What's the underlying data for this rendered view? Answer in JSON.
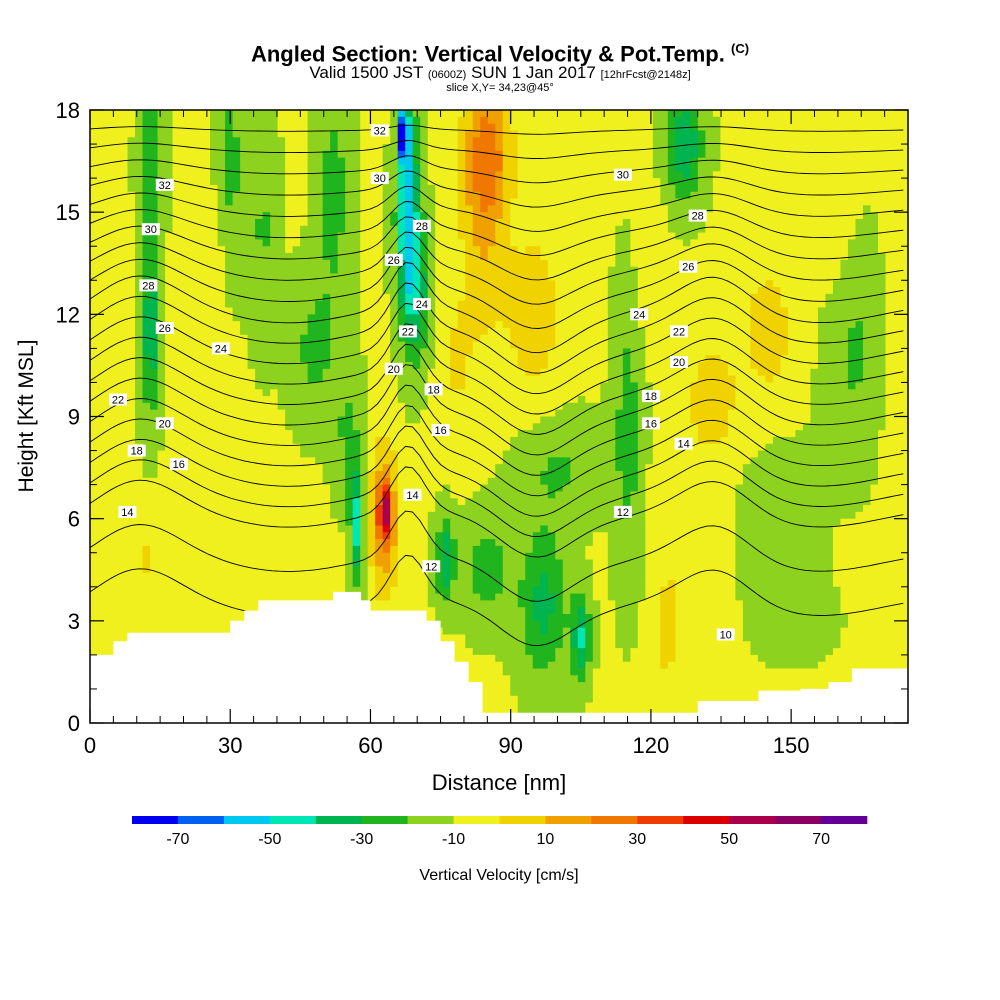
{
  "title": {
    "main": "Angled Section: Vertical Velocity & Pot.Temp.",
    "main_unit": "(C)",
    "valid_prefix": "Valid 1500 JST",
    "valid_utc": "(0600Z)",
    "valid_date": "SUN 1 Jan 2017",
    "forecast": "[12hrFcst@2148z]",
    "slice": "slice X,Y= 34,23@45°"
  },
  "chart_data": {
    "type": "heatmap",
    "xlabel": "Distance [nm]",
    "ylabel": "Height [Kft MSL]",
    "xlim": [
      0,
      175
    ],
    "ylim": [
      0,
      18
    ],
    "xticks": [
      0,
      30,
      60,
      90,
      120,
      150
    ],
    "yticks": [
      0,
      3,
      6,
      9,
      12,
      15,
      18
    ],
    "colorbar": {
      "label": "Vertical Velocity [cm/s]",
      "tick_labels": [
        "-70",
        "-50",
        "-30",
        "-10",
        "10",
        "30",
        "50",
        "70"
      ],
      "bounds": [
        -80,
        -70,
        -60,
        -50,
        -40,
        -30,
        -20,
        -10,
        0,
        10,
        20,
        30,
        40,
        50,
        60,
        70,
        80
      ],
      "colors": [
        "#0000f0",
        "#0060f0",
        "#00c8f0",
        "#00e6b4",
        "#00b450",
        "#20b41e",
        "#8cd21e",
        "#f0f01e",
        "#f0d200",
        "#f0a000",
        "#f07800",
        "#f03c00",
        "#dc0000",
        "#aa004c",
        "#8c0064",
        "#640096"
      ]
    },
    "terrain": [
      [
        0,
        2.0
      ],
      [
        5,
        2.0
      ],
      [
        5,
        2.4
      ],
      [
        8,
        2.4
      ],
      [
        8,
        2.65
      ],
      [
        30,
        2.65
      ],
      [
        30,
        3.0
      ],
      [
        33,
        3.0
      ],
      [
        33,
        3.3
      ],
      [
        36,
        3.3
      ],
      [
        36,
        3.6
      ],
      [
        52,
        3.6
      ],
      [
        52,
        3.85
      ],
      [
        58,
        3.85
      ],
      [
        58,
        3.6
      ],
      [
        60,
        3.6
      ],
      [
        60,
        3.3
      ],
      [
        72,
        3.3
      ],
      [
        72,
        3.0
      ],
      [
        75,
        3.0
      ],
      [
        75,
        2.4
      ],
      [
        78,
        2.4
      ],
      [
        78,
        1.8
      ],
      [
        81,
        1.8
      ],
      [
        81,
        1.2
      ],
      [
        84,
        1.2
      ],
      [
        84,
        0.3
      ],
      [
        130,
        0.3
      ],
      [
        130,
        0.65
      ],
      [
        143,
        0.65
      ],
      [
        143,
        0.95
      ],
      [
        152,
        0.95
      ],
      [
        152,
        1.0
      ],
      [
        158,
        1.0
      ],
      [
        158,
        1.2
      ],
      [
        163,
        1.2
      ],
      [
        163,
        1.6
      ],
      [
        175,
        1.6
      ]
    ],
    "pot_temp_contour_labels": [
      {
        "value": "32",
        "x": 16,
        "y": 15.8
      },
      {
        "value": "30",
        "x": 13,
        "y": 14.5
      },
      {
        "value": "28",
        "x": 12.5,
        "y": 12.85
      },
      {
        "value": "26",
        "x": 16,
        "y": 11.6
      },
      {
        "value": "24",
        "x": 28,
        "y": 11.0
      },
      {
        "value": "22",
        "x": 6,
        "y": 9.5
      },
      {
        "value": "20",
        "x": 16,
        "y": 8.8
      },
      {
        "value": "18",
        "x": 10,
        "y": 8.0
      },
      {
        "value": "16",
        "x": 19,
        "y": 7.6
      },
      {
        "value": "14",
        "x": 8,
        "y": 6.2
      },
      {
        "value": "32",
        "x": 62,
        "y": 17.4
      },
      {
        "value": "30",
        "x": 62,
        "y": 16.0
      },
      {
        "value": "28",
        "x": 71,
        "y": 14.6
      },
      {
        "value": "26",
        "x": 65,
        "y": 13.6
      },
      {
        "value": "24",
        "x": 71,
        "y": 12.3
      },
      {
        "value": "22",
        "x": 68,
        "y": 11.5
      },
      {
        "value": "20",
        "x": 65,
        "y": 10.4
      },
      {
        "value": "18",
        "x": 73.5,
        "y": 9.8
      },
      {
        "value": "16",
        "x": 75,
        "y": 8.6
      },
      {
        "value": "14",
        "x": 69,
        "y": 6.7
      },
      {
        "value": "12",
        "x": 73,
        "y": 4.6
      },
      {
        "value": "30",
        "x": 114,
        "y": 16.1
      },
      {
        "value": "28",
        "x": 130,
        "y": 14.9
      },
      {
        "value": "26",
        "x": 128,
        "y": 13.4
      },
      {
        "value": "24",
        "x": 117.5,
        "y": 12.0
      },
      {
        "value": "22",
        "x": 126,
        "y": 11.5
      },
      {
        "value": "20",
        "x": 126,
        "y": 10.6
      },
      {
        "value": "18",
        "x": 120,
        "y": 9.6
      },
      {
        "value": "16",
        "x": 120,
        "y": 8.8
      },
      {
        "value": "14",
        "x": 127,
        "y": 8.2
      },
      {
        "value": "12",
        "x": 114,
        "y": 6.2
      },
      {
        "value": "10",
        "x": 136,
        "y": 2.6
      }
    ]
  }
}
